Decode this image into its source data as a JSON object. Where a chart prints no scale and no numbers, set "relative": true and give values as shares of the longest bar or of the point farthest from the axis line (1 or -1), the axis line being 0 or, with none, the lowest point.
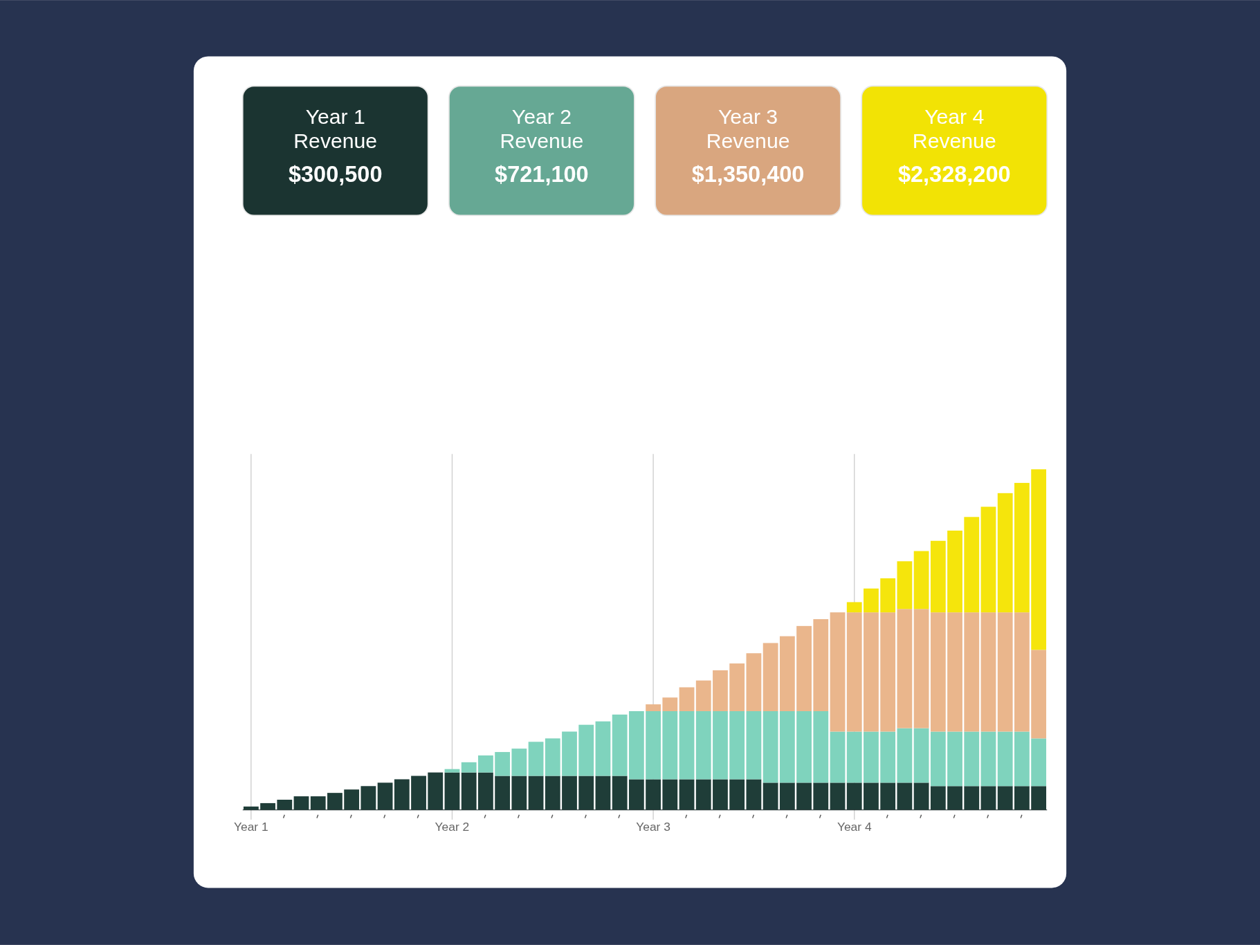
{
  "chart_data": [
    {
      "type": "other",
      "categories": [
        "Year 1 Revenue",
        "Year 2 Revenue",
        "Year 3 Revenue",
        "Year 4 Revenue"
      ],
      "value_labels": [
        "$300,500",
        "$721,100",
        "$1,350,400",
        "$2,328,200"
      ],
      "colors": [
        "#1b3431",
        "#66a894",
        "#d9a67f",
        "#f2e305"
      ]
    },
    {
      "type": "bar",
      "stacked": true,
      "relative": true,
      "grid": "x",
      "categories": [
        "Year 1",
        null,
        null,
        null,
        null,
        null,
        null,
        null,
        null,
        null,
        null,
        null,
        "Year 2",
        null,
        null,
        null,
        null,
        null,
        null,
        null,
        null,
        null,
        null,
        null,
        "Year 3",
        null,
        null,
        null,
        null,
        null,
        null,
        null,
        null,
        null,
        null,
        null,
        "Year 4",
        null,
        null,
        null,
        null,
        null,
        null,
        null,
        null,
        null,
        null,
        null
      ],
      "series": [
        {
          "color": "#1f3d38",
          "values": [
            0.01,
            0.02,
            0.03,
            0.04,
            0.04,
            0.05,
            0.06,
            0.07,
            0.08,
            0.09,
            0.1,
            0.11,
            0.11,
            0.11,
            0.11,
            0.1,
            0.1,
            0.1,
            0.1,
            0.1,
            0.1,
            0.1,
            0.1,
            0.09,
            0.09,
            0.09,
            0.09,
            0.09,
            0.09,
            0.09,
            0.09,
            0.08,
            0.08,
            0.08,
            0.08,
            0.08,
            0.08,
            0.08,
            0.08,
            0.08,
            0.08,
            0.07,
            0.07,
            0.07,
            0.07,
            0.07,
            0.07,
            0.07
          ]
        },
        {
          "color": "#7fd3bd",
          "values": [
            null,
            null,
            null,
            null,
            null,
            null,
            null,
            null,
            null,
            null,
            null,
            null,
            0.01,
            0.03,
            0.05,
            0.07,
            0.08,
            0.1,
            0.11,
            0.13,
            0.15,
            0.16,
            0.18,
            0.2,
            0.2,
            0.2,
            0.2,
            0.2,
            0.2,
            0.2,
            0.2,
            0.21,
            0.21,
            0.21,
            0.21,
            0.15,
            0.15,
            0.15,
            0.15,
            0.16,
            0.16,
            0.16,
            0.16,
            0.16,
            0.16,
            0.16,
            0.16,
            0.14
          ]
        },
        {
          "color": "#eab68c",
          "values": [
            null,
            null,
            null,
            null,
            null,
            null,
            null,
            null,
            null,
            null,
            null,
            null,
            null,
            null,
            null,
            null,
            null,
            null,
            null,
            null,
            null,
            null,
            null,
            null,
            0.02,
            0.04,
            0.07,
            0.09,
            0.12,
            0.14,
            0.17,
            0.2,
            0.22,
            0.25,
            0.27,
            0.35,
            0.35,
            0.35,
            0.35,
            0.35,
            0.35,
            0.35,
            0.35,
            0.35,
            0.35,
            0.35,
            0.35,
            0.26
          ]
        },
        {
          "color": "#f5e50c",
          "values": [
            null,
            null,
            null,
            null,
            null,
            null,
            null,
            null,
            null,
            null,
            null,
            null,
            null,
            null,
            null,
            null,
            null,
            null,
            null,
            null,
            null,
            null,
            null,
            null,
            null,
            null,
            null,
            null,
            null,
            null,
            null,
            null,
            null,
            null,
            null,
            null,
            0.03,
            0.07,
            0.1,
            0.14,
            0.17,
            0.21,
            0.24,
            0.28,
            0.31,
            0.35,
            0.38,
            0.53
          ]
        }
      ]
    }
  ]
}
